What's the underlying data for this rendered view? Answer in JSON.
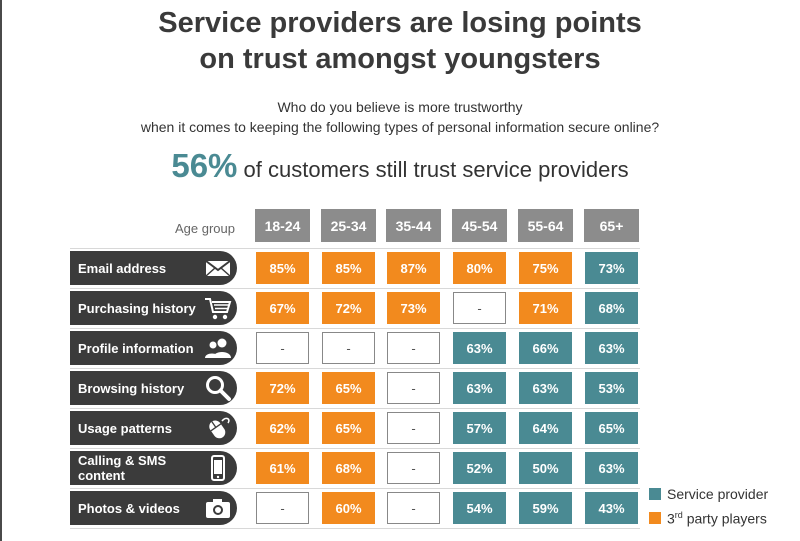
{
  "title_line1": "Service providers are losing points",
  "title_line2": "on trust amongst youngsters",
  "subtitle_line1": "Who do you believe is more trustworthy",
  "subtitle_line2": "when it comes to keeping the following types of personal information secure online?",
  "headline": {
    "value": "56%",
    "text": "of customers still trust service providers"
  },
  "colors": {
    "service_provider": "#4a8a93",
    "third_party": "#f28a1e",
    "header": "#8c8c8c",
    "row_label": "#3b3b3b"
  },
  "chart_data": {
    "type": "table",
    "row_header_label": "Age group",
    "columns": [
      "18-24",
      "25-34",
      "35-44",
      "45-54",
      "55-64",
      "65+"
    ],
    "rows": [
      {
        "label": "Email address",
        "icon": "envelope-icon",
        "cells": [
          {
            "value": "85%",
            "type": "third"
          },
          {
            "value": "85%",
            "type": "third"
          },
          {
            "value": "87%",
            "type": "third"
          },
          {
            "value": "80%",
            "type": "third"
          },
          {
            "value": "75%",
            "type": "third"
          },
          {
            "value": "73%",
            "type": "service"
          }
        ]
      },
      {
        "label": "Purchasing history",
        "icon": "shopping-cart-icon",
        "cells": [
          {
            "value": "67%",
            "type": "third"
          },
          {
            "value": "72%",
            "type": "third"
          },
          {
            "value": "73%",
            "type": "third"
          },
          {
            "value": "-",
            "type": "none"
          },
          {
            "value": "71%",
            "type": "third"
          },
          {
            "value": "68%",
            "type": "service"
          }
        ]
      },
      {
        "label": "Profile information",
        "icon": "users-icon",
        "cells": [
          {
            "value": "-",
            "type": "none"
          },
          {
            "value": "-",
            "type": "none"
          },
          {
            "value": "-",
            "type": "none"
          },
          {
            "value": "63%",
            "type": "service"
          },
          {
            "value": "66%",
            "type": "service"
          },
          {
            "value": "63%",
            "type": "service"
          }
        ]
      },
      {
        "label": "Browsing history",
        "icon": "magnifier-icon",
        "cells": [
          {
            "value": "72%",
            "type": "third"
          },
          {
            "value": "65%",
            "type": "third"
          },
          {
            "value": "-",
            "type": "none"
          },
          {
            "value": "63%",
            "type": "service"
          },
          {
            "value": "63%",
            "type": "service"
          },
          {
            "value": "53%",
            "type": "service"
          }
        ]
      },
      {
        "label": "Usage patterns",
        "icon": "mouse-icon",
        "cells": [
          {
            "value": "62%",
            "type": "third"
          },
          {
            "value": "65%",
            "type": "third"
          },
          {
            "value": "-",
            "type": "none"
          },
          {
            "value": "57%",
            "type": "service"
          },
          {
            "value": "64%",
            "type": "service"
          },
          {
            "value": "65%",
            "type": "service"
          }
        ]
      },
      {
        "label": "Calling & SMS content",
        "icon": "phone-icon",
        "cells": [
          {
            "value": "61%",
            "type": "third"
          },
          {
            "value": "68%",
            "type": "third"
          },
          {
            "value": "-",
            "type": "none"
          },
          {
            "value": "52%",
            "type": "service"
          },
          {
            "value": "50%",
            "type": "service"
          },
          {
            "value": "63%",
            "type": "service"
          }
        ]
      },
      {
        "label": "Photos & videos",
        "icon": "camera-icon",
        "cells": [
          {
            "value": "-",
            "type": "none"
          },
          {
            "value": "60%",
            "type": "third"
          },
          {
            "value": "-",
            "type": "none"
          },
          {
            "value": "54%",
            "type": "service"
          },
          {
            "value": "59%",
            "type": "service"
          },
          {
            "value": "43%",
            "type": "service"
          }
        ]
      }
    ],
    "legend": [
      {
        "label": "Service provider",
        "type": "service"
      },
      {
        "label_main": "3",
        "label_sup": "rd",
        "label_rest": " party players",
        "type": "third"
      }
    ],
    "legend_position": "bottom-right"
  }
}
